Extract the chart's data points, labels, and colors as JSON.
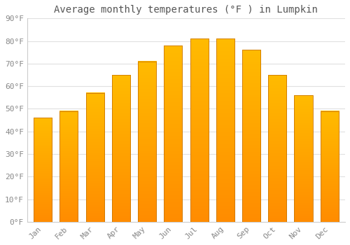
{
  "title": "Average monthly temperatures (°F ) in Lumpkin",
  "months": [
    "Jan",
    "Feb",
    "Mar",
    "Apr",
    "May",
    "Jun",
    "Jul",
    "Aug",
    "Sep",
    "Oct",
    "Nov",
    "Dec"
  ],
  "values": [
    46,
    49,
    57,
    65,
    71,
    78,
    81,
    81,
    76,
    65,
    56,
    49
  ],
  "bar_color_top": "#FFBB00",
  "bar_color_bottom": "#FF8C00",
  "bar_edge_color": "#CC7700",
  "background_color": "#FFFFFF",
  "grid_color": "#E0E0E0",
  "text_color": "#888888",
  "title_color": "#555555",
  "ylim": [
    0,
    90
  ],
  "ytick_step": 10,
  "title_fontsize": 10,
  "tick_fontsize": 8
}
